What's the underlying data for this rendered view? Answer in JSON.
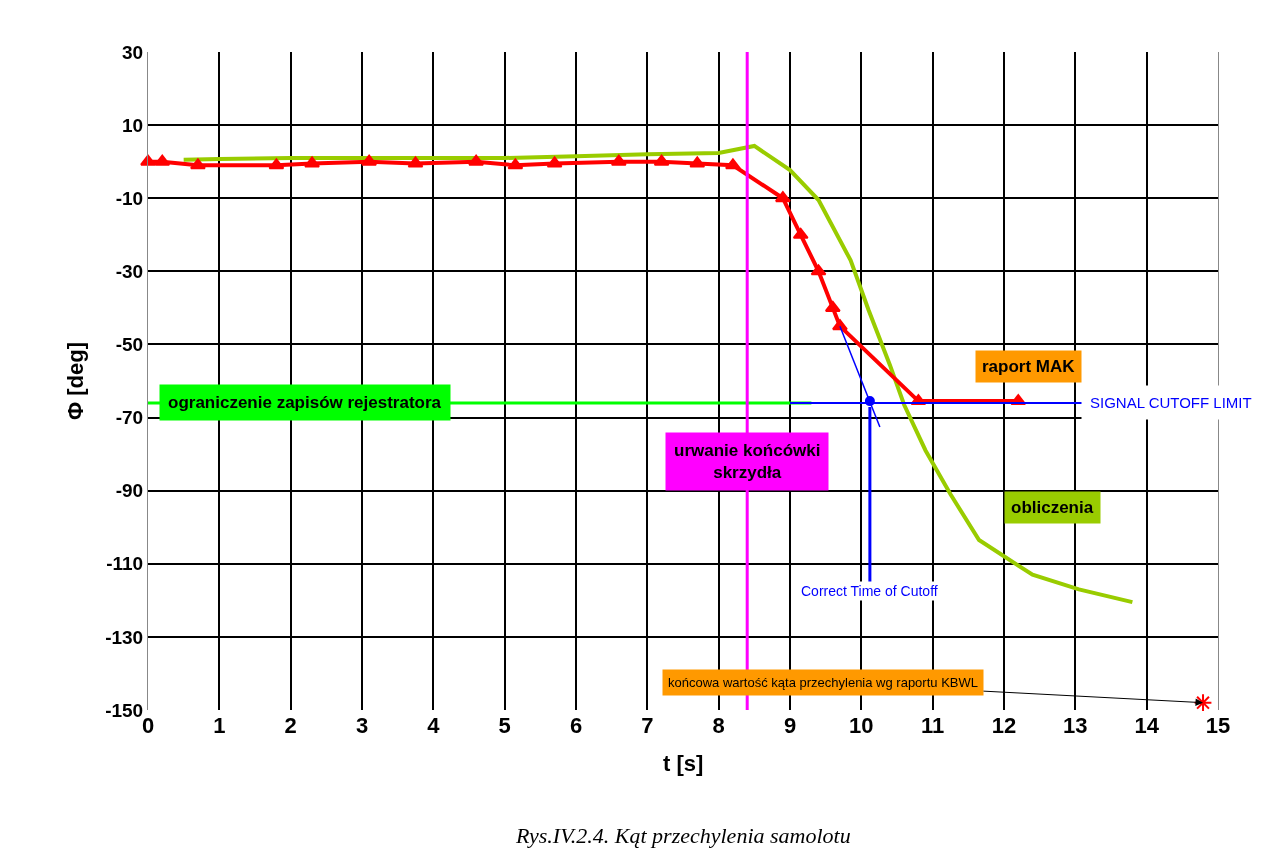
{
  "chart_data": {
    "type": "line",
    "xlabel": "t [s]",
    "ylabel": "Φ [deg]",
    "xlim": [
      0,
      15
    ],
    "xticks": [
      0,
      1,
      2,
      3,
      4,
      5,
      6,
      7,
      8,
      9,
      10,
      11,
      12,
      13,
      14,
      15
    ],
    "ylim": [
      -150,
      30
    ],
    "yticks": [
      -150,
      -130,
      -110,
      -90,
      -70,
      -50,
      -30,
      -10,
      10,
      30
    ],
    "grid": true,
    "series": [
      {
        "name": "obliczenia",
        "color": "#99cc00",
        "marker": "none",
        "x": [
          0.5,
          1,
          2,
          3,
          4,
          5,
          6,
          7,
          8,
          8.5,
          9.0,
          9.4,
          9.85,
          10.1,
          10.4,
          10.6,
          10.9,
          11.25,
          11.65,
          12.4,
          13.05,
          13.8
        ],
        "values": [
          0.5,
          0.7,
          1,
          1,
          1,
          1,
          1.5,
          2,
          2.4,
          4.3,
          -2.3,
          -10.5,
          -27,
          -40.5,
          -55.6,
          -66.5,
          -79,
          -91,
          -103.5,
          -113,
          -117,
          -120.5
        ]
      },
      {
        "name": "raport MAK",
        "color": "#ff0000",
        "marker": "triangle",
        "x": [
          0,
          0.2,
          0.7,
          1.8,
          2.3,
          3.1,
          3.75,
          4.6,
          5.15,
          5.7,
          6.6,
          7.2,
          7.7,
          8.2,
          8.9,
          9.15,
          9.4,
          9.6,
          9.7,
          10.8,
          12.2
        ],
        "values": [
          0,
          0,
          -1,
          -1,
          -0.5,
          0,
          -0.5,
          0,
          -1,
          -0.5,
          0,
          0,
          -0.5,
          -1,
          -10,
          -20,
          -30,
          -40,
          -45,
          -65.5,
          -65.5
        ]
      },
      {
        "color": "#0000ff",
        "marker": "none",
        "x": [
          9.7,
          10.26
        ],
        "values": [
          -45,
          -72.6
        ]
      },
      {
        "color": "#0000ff",
        "type": "scatter",
        "marker": "circle",
        "x": [
          10.12
        ],
        "values": [
          -65.5
        ]
      },
      {
        "color": "#ff0000",
        "type": "scatter",
        "marker": "cross",
        "x": [
          14.79
        ],
        "values": [
          -148
        ]
      }
    ],
    "ref_lines": [
      {
        "axis": "y",
        "value": -66,
        "label": "ograniczenie zapisów rejestratora",
        "color": "#00ff00"
      },
      {
        "axis": "y",
        "value": -66,
        "label": "SIGNAL CUTOFF LIMIT",
        "color": "#0000ff"
      },
      {
        "axis": "x",
        "value": 8.4,
        "label": "urwanie końcówki skrzydła",
        "color": "#ff00ff"
      }
    ],
    "annotations": [
      {
        "text": "Correct Time of Cutoff",
        "x": 10.12,
        "y": -65.5
      },
      {
        "text": "końcowa wartość kąta przechylenia wg raportu KBWL",
        "x": 14.79,
        "y": -148
      },
      "Rys.IV.2.4. Kąt przechylenia samolotu"
    ]
  }
}
